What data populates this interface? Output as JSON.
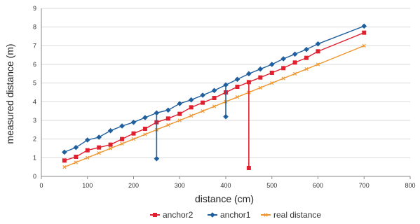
{
  "chart_data": {
    "type": "line",
    "xlabel": "distance (cm)",
    "ylabel": "measured distance (m)",
    "xlim": [
      0,
      800
    ],
    "ylim": [
      0,
      9
    ],
    "xticks": [
      0,
      100,
      200,
      300,
      400,
      500,
      600,
      700,
      800
    ],
    "yticks": [
      0,
      1,
      2,
      3,
      4,
      5,
      6,
      7,
      8,
      9
    ],
    "grid": "horizontal",
    "legend_position": "bottom",
    "series": [
      {
        "name": "anchor2",
        "color": "#e0202e",
        "marker": "square",
        "x": [
          50,
          75,
          100,
          125,
          150,
          175,
          200,
          225,
          250,
          275,
          300,
          325,
          350,
          375,
          400,
          425,
          450,
          475,
          500,
          525,
          550,
          575,
          600,
          700
        ],
        "y": [
          0.85,
          1.05,
          1.4,
          1.55,
          1.7,
          2.0,
          2.3,
          2.55,
          2.9,
          3.1,
          3.35,
          3.7,
          3.95,
          4.2,
          4.5,
          4.8,
          5.05,
          5.3,
          5.55,
          5.8,
          6.1,
          6.35,
          6.7,
          7.7
        ],
        "outliers": [
          {
            "x": 450,
            "y": 0.45
          }
        ]
      },
      {
        "name": "anchor1",
        "color": "#1f5f9e",
        "marker": "diamond",
        "x": [
          50,
          75,
          100,
          125,
          150,
          175,
          200,
          225,
          250,
          275,
          300,
          325,
          350,
          375,
          400,
          425,
          450,
          475,
          500,
          525,
          550,
          575,
          600,
          700
        ],
        "y": [
          1.3,
          1.55,
          1.95,
          2.1,
          2.45,
          2.7,
          2.9,
          3.15,
          3.4,
          3.55,
          3.9,
          4.1,
          4.35,
          4.6,
          4.9,
          5.2,
          5.5,
          5.75,
          6.0,
          6.3,
          6.55,
          6.8,
          7.1,
          8.05
        ],
        "outliers": [
          {
            "x": 250,
            "y": 0.95
          },
          {
            "x": 400,
            "y": 3.2
          }
        ]
      },
      {
        "name": "real distance",
        "color": "#f0962e",
        "marker": "x",
        "x": [
          50,
          75,
          100,
          125,
          150,
          175,
          200,
          225,
          250,
          275,
          300,
          325,
          350,
          375,
          400,
          425,
          450,
          475,
          500,
          525,
          550,
          575,
          600,
          700
        ],
        "y": [
          0.5,
          0.75,
          1.0,
          1.25,
          1.5,
          1.75,
          2.0,
          2.25,
          2.5,
          2.75,
          3.0,
          3.25,
          3.5,
          3.75,
          4.0,
          4.25,
          4.5,
          4.75,
          5.0,
          5.25,
          5.5,
          5.75,
          6.0,
          7.0
        ]
      }
    ]
  }
}
